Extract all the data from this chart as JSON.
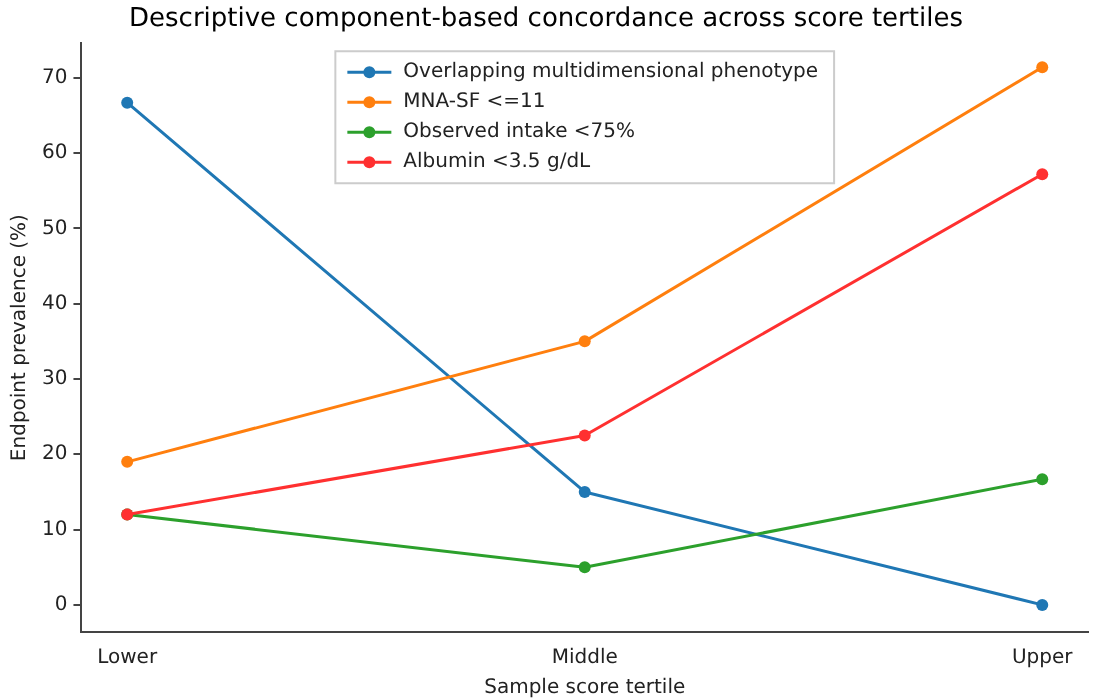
{
  "chart_data": {
    "type": "line",
    "title": "Descriptive component-based concordance across score tertiles",
    "xlabel": "Sample score tertile",
    "ylabel": "Endpoint prevalence (%)",
    "categories": [
      "Lower",
      "Middle",
      "Upper"
    ],
    "series": [
      {
        "name": "Overlapping multidimensional phenotype",
        "color": "#1f77b4",
        "values": [
          66.7,
          15,
          0
        ]
      },
      {
        "name": "MNA-SF <=11",
        "color": "#ff7f0e",
        "values": [
          19,
          35,
          71.4
        ]
      },
      {
        "name": "Observed intake <75%",
        "color": "#2ca02c",
        "values": [
          12,
          5,
          16.7
        ]
      },
      {
        "name": "Albumin <3.5 g/dL",
        "color": "#ff3030",
        "values": [
          12,
          22.5,
          57.2
        ]
      }
    ],
    "ylim": [
      -3.6,
      74.6
    ],
    "yticks": [
      0,
      10,
      20,
      30,
      40,
      50,
      60,
      70
    ],
    "grid": false,
    "legend": "top",
    "marker": "circle",
    "line_style": "solid"
  }
}
